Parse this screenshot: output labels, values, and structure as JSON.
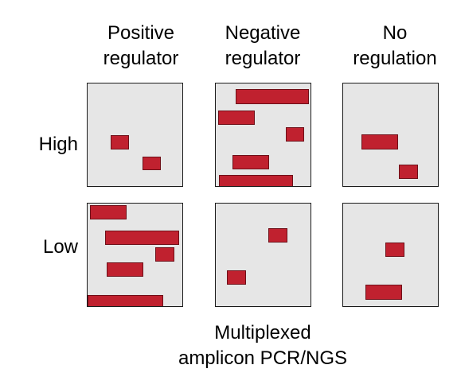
{
  "columns": {
    "positive": "Positive\nregulator",
    "negative": "Negative\nregulator",
    "none": "No\nregulation"
  },
  "rows": {
    "high": "High",
    "low": "Low"
  },
  "footer": "Multiplexed\namplicon PCR/NGS",
  "colors": {
    "panel_background": "#e6e6e6",
    "band": "#c0212f",
    "band_outline": "#6e0f18"
  }
}
